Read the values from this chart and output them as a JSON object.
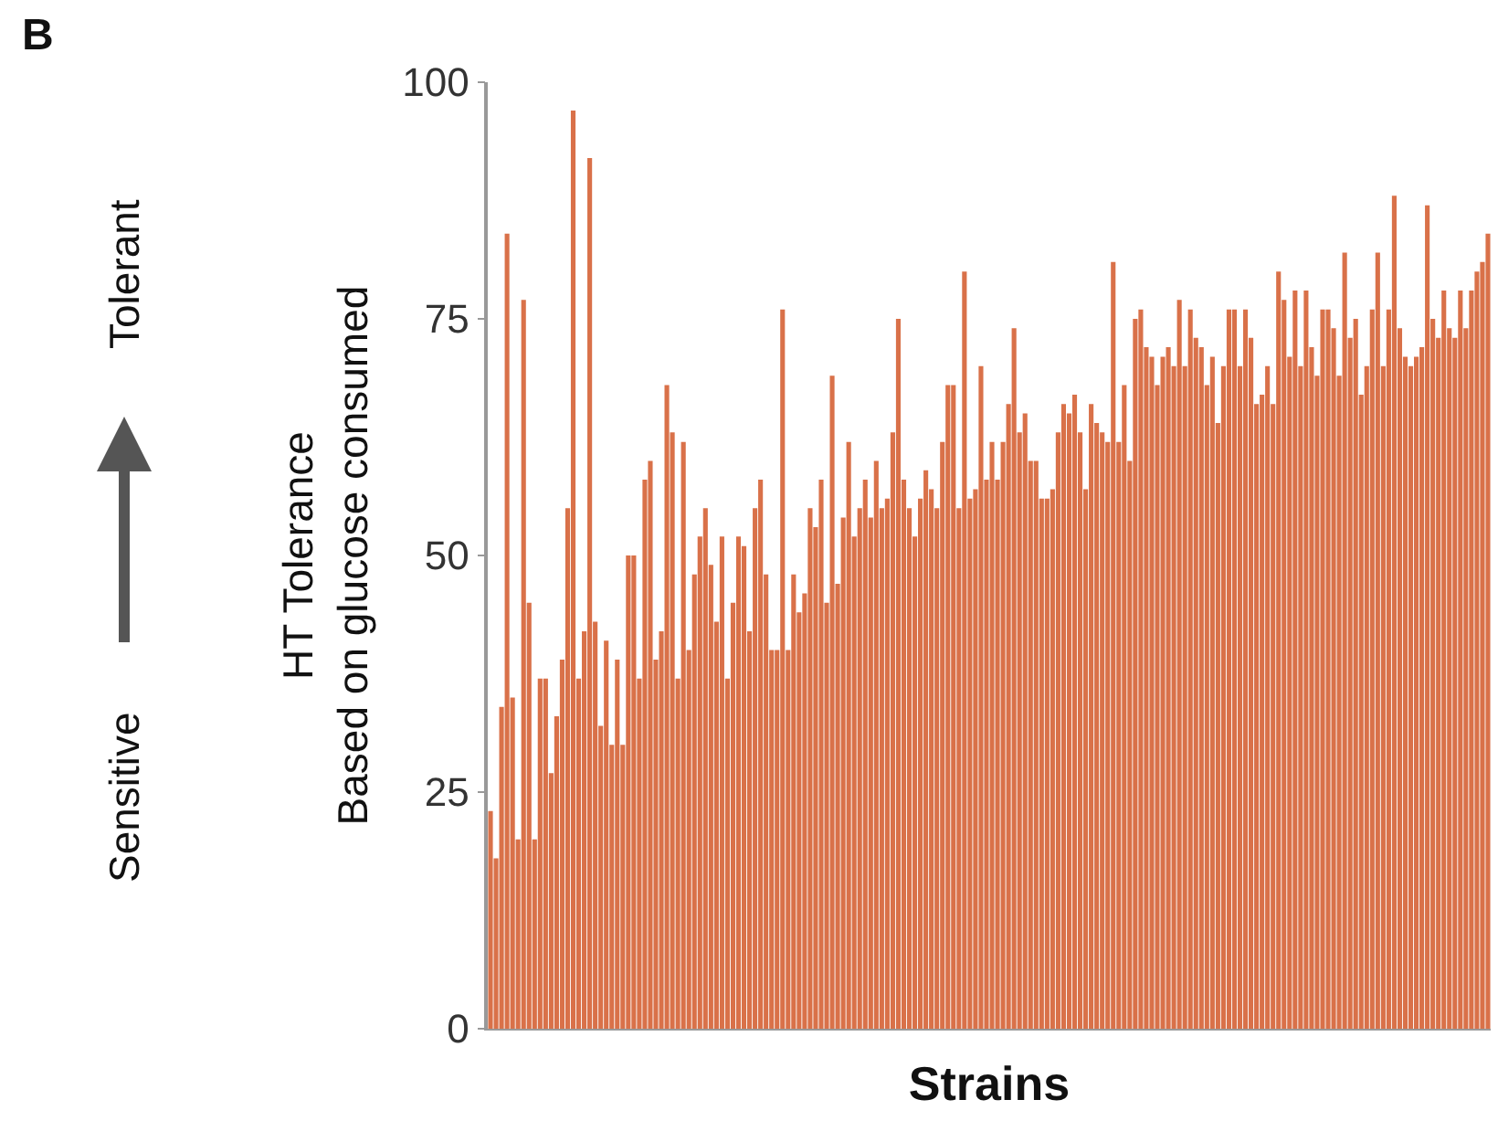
{
  "chart_data": {
    "type": "bar",
    "xlabel": "Strains",
    "ylabel": "HT Tolerance\nBased on glucose consumed",
    "annotations": [
      "B",
      "Sensitive",
      "Tolerant"
    ],
    "color": "#d97149",
    "values": [
      23,
      18,
      34,
      84,
      35,
      20,
      77,
      45,
      20,
      37,
      37,
      27,
      33,
      39,
      55,
      97,
      37,
      42,
      92,
      43,
      32,
      41,
      30,
      39,
      30,
      50,
      50,
      37,
      58,
      60,
      39,
      42,
      68,
      63,
      37,
      62,
      40,
      48,
      52,
      55,
      49,
      43,
      52,
      37,
      45,
      52,
      51,
      42,
      55,
      58,
      48,
      40,
      40,
      76,
      40,
      48,
      44,
      46,
      55,
      53,
      58,
      45,
      69,
      47,
      54,
      62,
      52,
      55,
      58,
      54,
      60,
      55,
      56,
      63,
      75,
      58,
      55,
      52,
      56,
      59,
      57,
      55,
      62,
      68,
      68,
      55,
      80,
      56,
      57,
      70,
      58,
      62,
      58,
      62,
      66,
      74,
      63,
      65,
      60,
      60,
      56,
      56,
      57,
      63,
      66,
      65,
      67,
      63,
      57,
      66,
      64,
      63,
      62,
      81,
      62,
      68,
      60,
      75,
      76,
      72,
      71,
      68,
      71,
      72,
      70,
      77,
      70,
      76,
      73,
      72,
      68,
      71,
      64,
      70,
      76,
      76,
      70,
      76,
      73,
      66,
      67,
      70,
      66,
      80,
      77,
      71,
      78,
      70,
      78,
      72,
      69,
      76,
      76,
      74,
      69,
      82,
      73,
      75,
      67,
      70,
      76,
      82,
      70,
      76,
      88,
      74,
      71,
      70,
      71,
      72,
      87,
      75,
      73,
      78,
      74,
      73,
      78,
      74,
      78,
      80,
      81,
      84
    ],
    "ylim": [
      0,
      100
    ],
    "yticks": [
      0,
      25,
      50,
      75,
      100
    ]
  }
}
